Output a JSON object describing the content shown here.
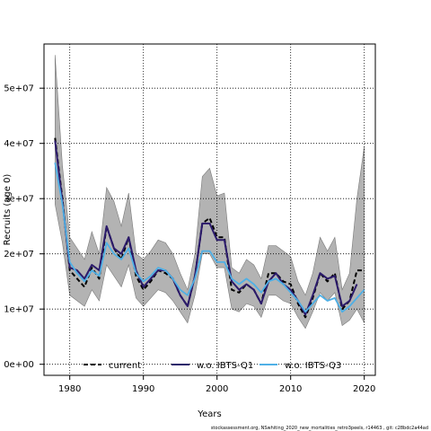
{
  "chart_data": {
    "type": "line",
    "xlabel": "Years",
    "ylabel": "Recruits (age 0)",
    "xlim": [
      1976.5,
      2021.5
    ],
    "ylim": [
      -2000000,
      58000000
    ],
    "x_ticks": [
      1980,
      1990,
      2000,
      2010,
      2020
    ],
    "y_ticks": [
      0,
      10000000,
      20000000,
      30000000,
      40000000,
      50000000
    ],
    "x_tick_labels": [
      "1980",
      "1990",
      "2000",
      "2010",
      "2020"
    ],
    "y_tick_labels": [
      "0e+00",
      "1e+07",
      "2e+07",
      "3e+07",
      "4e+07",
      "5e+07"
    ],
    "grid": "dotted",
    "legend_position": "bottom",
    "x": [
      1978,
      1979,
      1980,
      1981,
      1982,
      1983,
      1984,
      1985,
      1986,
      1987,
      1988,
      1989,
      1990,
      1991,
      1992,
      1993,
      1994,
      1995,
      1996,
      1997,
      1998,
      1999,
      2000,
      2001,
      2002,
      2003,
      2004,
      2005,
      2006,
      2007,
      2008,
      2009,
      2010,
      2011,
      2012,
      2013,
      2014,
      2015,
      2016,
      2017,
      2018,
      2019,
      2020
    ],
    "band": {
      "upper": [
        56000000,
        36000000,
        23000000,
        21000000,
        19000000,
        24000000,
        20000000,
        32000000,
        29500000,
        25000000,
        31000000,
        20000000,
        19000000,
        20500000,
        22500000,
        22000000,
        20000000,
        16500000,
        13500000,
        20000000,
        34000000,
        35500000,
        30500000,
        31000000,
        17500000,
        16500000,
        19000000,
        18000000,
        15500000,
        21500000,
        21500000,
        20500000,
        19500000,
        15000000,
        12500000,
        16500000,
        23000000,
        20500000,
        23000000,
        13500000,
        16500000,
        30000000,
        39500000
      ],
      "lower": [
        29000000,
        22000000,
        12500000,
        11500000,
        10500000,
        13500000,
        11500000,
        18000000,
        16000000,
        14000000,
        18000000,
        12000000,
        10500000,
        12000000,
        13500000,
        13000000,
        11500000,
        9500000,
        7500000,
        12500000,
        20000000,
        20000000,
        17500000,
        17500000,
        10000000,
        9500000,
        11000000,
        10500000,
        8500000,
        12500000,
        12500000,
        11500000,
        11000000,
        8500000,
        6500000,
        9500000,
        13000000,
        11500000,
        13000000,
        7000000,
        8000000,
        10000000,
        7500000
      ]
    },
    "series": [
      {
        "name": "current",
        "color": "#000000",
        "dash": "dashed",
        "x_end": 2020,
        "values": [
          41000000,
          30000000,
          17000000,
          15500000,
          14000000,
          17500000,
          15500000,
          25000000,
          21000000,
          19000000,
          23000000,
          16000000,
          13500000,
          15000000,
          17000000,
          16500000,
          15500000,
          12500000,
          10500000,
          16000000,
          25500000,
          26500000,
          23000000,
          23000000,
          13500000,
          13000000,
          14500000,
          13500000,
          11000000,
          16500000,
          16500000,
          15000000,
          14500000,
          11000000,
          8500000,
          12000000,
          16500000,
          15000000,
          16500000,
          10000000,
          11500000,
          17000000,
          17000000
        ]
      },
      {
        "name": "w.o. IBTS-Q1",
        "color": "#2b1a6b",
        "dash": "solid",
        "x_end": 2019,
        "values": [
          40500000,
          29500000,
          17500000,
          17000000,
          15500000,
          18000000,
          17000000,
          25000000,
          21000000,
          20000000,
          23000000,
          17000000,
          14000000,
          15500000,
          17000000,
          17000000,
          15500000,
          12500000,
          10500000,
          16000000,
          25500000,
          25500000,
          22500000,
          22500000,
          15000000,
          13500000,
          14500000,
          13500000,
          11000000,
          15000000,
          16500000,
          14500000,
          13500000,
          11500000,
          9000000,
          12500000,
          16500000,
          15500000,
          16000000,
          10500000,
          11500000,
          14500000,
          null
        ]
      },
      {
        "name": "w.o. IBTS-Q3",
        "color": "#4fb0e6",
        "dash": "solid",
        "x_end": 2020,
        "values": [
          36500000,
          29000000,
          18500000,
          16500000,
          15000000,
          17000000,
          16000000,
          22000000,
          20000000,
          19000000,
          21000000,
          16500000,
          15000000,
          16000000,
          17500000,
          17000000,
          15500000,
          13500000,
          12500000,
          15500000,
          20500000,
          20500000,
          18500000,
          18500000,
          15500000,
          14500000,
          15500000,
          14500000,
          13000000,
          15000000,
          15500000,
          14500000,
          13000000,
          11500000,
          9500000,
          11000000,
          12500000,
          11500000,
          12000000,
          9500000,
          10500000,
          12000000,
          13500000
        ]
      }
    ]
  },
  "footer": "stockassessment.org, NSwhiting_2020_new_mortalities_retro3peels, r14463 , git: c28bdc2a44ad"
}
